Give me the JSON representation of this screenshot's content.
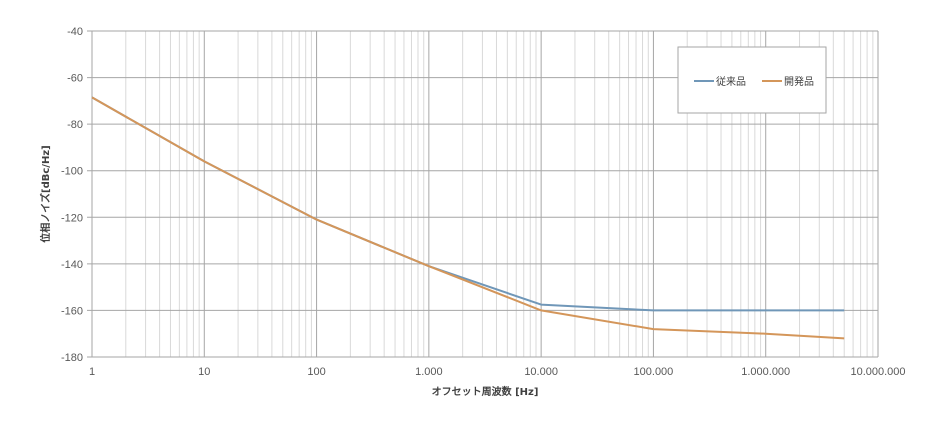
{
  "chart_data": {
    "type": "line",
    "title": "",
    "xlabel": "オフセット周波数 [Hz]",
    "ylabel": "位相ノイズ[dBc/Hz]",
    "xscale": "log",
    "xlim": [
      1,
      10000000
    ],
    "ylim": [
      -180,
      -40
    ],
    "grid": true,
    "legend_position": "top-right (inside plot)",
    "x_tick_labels": [
      "1",
      "10",
      "100",
      "1.000",
      "10.000",
      "100.000",
      "1.000.000",
      "10.000.000"
    ],
    "y_tick_labels": [
      "-40",
      "-60",
      "-80",
      "-100",
      "-120",
      "-140",
      "-160",
      "-180"
    ],
    "x": [
      1,
      10,
      100,
      1000,
      10000,
      100000,
      1000000,
      5000000
    ],
    "series": [
      {
        "name": "従来品",
        "color": "#7097b8",
        "values": [
          -68.5,
          -96,
          -121,
          -141,
          -157.5,
          -160,
          -160,
          -160
        ]
      },
      {
        "name": "開発品",
        "color": "#d4965a",
        "values": [
          -68.5,
          -96,
          -121,
          -141,
          -160,
          -168,
          -170,
          -172
        ]
      }
    ]
  },
  "legend": {
    "items": [
      {
        "label": "従来品",
        "color": "#7097b8"
      },
      {
        "label": "開発品",
        "color": "#d4965a"
      }
    ]
  }
}
